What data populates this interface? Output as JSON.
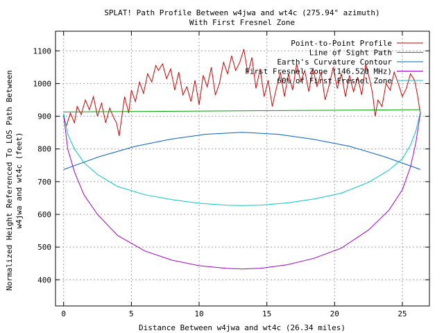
{
  "chart_data": {
    "type": "line",
    "title": "SPLAT! Path Profile Between w4jwa and wt4c (275.94° azimuth)",
    "subtitle": "With First Fresnel Zone",
    "xlabel": "Distance Between w4jwa and wt4c (26.34 miles)",
    "ylabel_lines": [
      "Normalized Height Referenced To LOS Path Between",
      "w4jwa and wt4c (feet)"
    ],
    "xlim": [
      -0.6,
      27.0
    ],
    "ylim": [
      320,
      1160
    ],
    "x_ticks": [
      0,
      5,
      10,
      15,
      20,
      25
    ],
    "y_ticks": [
      400,
      500,
      600,
      700,
      800,
      900,
      1000,
      1100
    ],
    "grid": true,
    "legend_position": "top-right",
    "series": [
      {
        "name": "Point-to-Point Profile",
        "color": "#cc0000",
        "x": [
          0,
          0.2,
          0.5,
          0.8,
          1.0,
          1.3,
          1.6,
          1.9,
          2.2,
          2.5,
          2.8,
          3.1,
          3.4,
          3.7,
          3.9,
          4.1,
          4.3,
          4.5,
          4.8,
          5.0,
          5.3,
          5.6,
          5.9,
          6.2,
          6.5,
          6.8,
          7.0,
          7.3,
          7.6,
          7.9,
          8.2,
          8.5,
          8.8,
          9.1,
          9.4,
          9.7,
          10.0,
          10.3,
          10.6,
          10.9,
          11.2,
          11.5,
          11.8,
          12.1,
          12.4,
          12.7,
          13.0,
          13.3,
          13.6,
          13.9,
          14.2,
          14.5,
          14.8,
          15.1,
          15.4,
          15.7,
          16.0,
          16.3,
          16.6,
          16.9,
          17.2,
          17.5,
          17.8,
          18.1,
          18.4,
          18.7,
          19.0,
          19.3,
          19.6,
          19.9,
          20.2,
          20.5,
          20.8,
          21.1,
          21.4,
          21.7,
          22.0,
          22.3,
          22.6,
          22.8,
          23.0,
          23.2,
          23.5,
          23.8,
          24.1,
          24.4,
          24.7,
          25.0,
          25.3,
          25.6,
          25.9,
          26.1,
          26.34
        ],
        "values": [
          900,
          870,
          910,
          880,
          930,
          905,
          950,
          920,
          960,
          900,
          940,
          880,
          925,
          895,
          880,
          840,
          900,
          960,
          910,
          980,
          945,
          1005,
          970,
          1030,
          1005,
          1055,
          1040,
          1060,
          1015,
          1045,
          980,
          1035,
          965,
          990,
          945,
          1010,
          935,
          1025,
          990,
          1050,
          965,
          1000,
          1065,
          1030,
          1085,
          1040,
          1065,
          1105,
          1030,
          1080,
          985,
          1045,
          960,
          1010,
          930,
          985,
          1035,
          960,
          1030,
          980,
          1060,
          1005,
          1040,
          975,
          1045,
          990,
          1035,
          950,
          995,
          1050,
          985,
          1030,
          960,
          1025,
          975,
          1020,
          965,
          1060,
          1010,
          970,
          900,
          950,
          930,
          1000,
          980,
          1035,
          1000,
          960,
          985,
          1030,
          1010,
          970,
          905
        ]
      },
      {
        "name": "Line of Sight Path",
        "color": "#00a000",
        "x": [
          0,
          26.34
        ],
        "values": [
          913,
          920
        ]
      },
      {
        "name": "Earth's Curvature Contour",
        "color": "#0060c0",
        "x": [
          0,
          2.6,
          5.3,
          7.9,
          10.5,
          13.17,
          15.8,
          18.4,
          21.1,
          23.7,
          26.34
        ],
        "values": [
          737,
          776,
          808,
          830,
          845,
          851,
          845,
          830,
          808,
          776,
          737
        ]
      },
      {
        "name": "First Fresnel Zone (146.520 MHz)",
        "color": "#a000c8",
        "x": [
          0,
          0.3,
          0.8,
          1.5,
          2.5,
          4.0,
          6.0,
          8.0,
          10.0,
          12.0,
          13.17,
          14.5,
          16.5,
          18.5,
          20.5,
          22.5,
          24.0,
          25.0,
          25.6,
          26.0,
          26.34
        ],
        "values": [
          905,
          800,
          730,
          660,
          600,
          535,
          488,
          460,
          443,
          435,
          433,
          435,
          446,
          466,
          497,
          552,
          612,
          675,
          745,
          820,
          912
        ]
      },
      {
        "name": "60% of First Fresnel Zone",
        "color": "#00c8c8",
        "x": [
          0,
          0.3,
          0.8,
          1.5,
          2.5,
          4.0,
          6.0,
          8.0,
          10.0,
          12.0,
          13.17,
          14.5,
          16.5,
          18.5,
          20.5,
          22.5,
          24.0,
          25.0,
          25.6,
          26.0,
          26.34
        ],
        "values": [
          909,
          845,
          800,
          758,
          722,
          685,
          660,
          645,
          634,
          628,
          627,
          628,
          635,
          647,
          665,
          698,
          735,
          770,
          812,
          855,
          915
        ]
      }
    ]
  }
}
